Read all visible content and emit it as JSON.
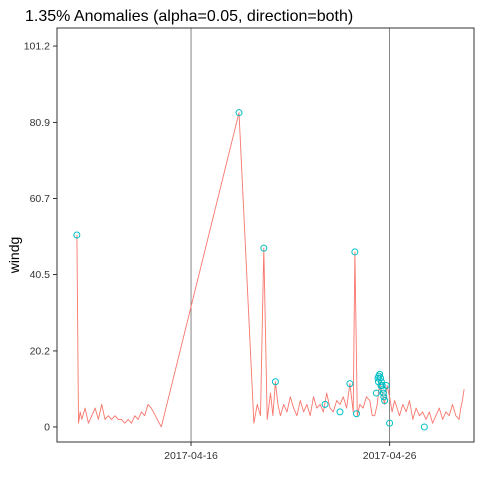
{
  "chart_data": {
    "type": "line",
    "title": "1.35% Anomalies (alpha=0.05, direction=both)",
    "xlabel": "",
    "ylabel": "windg",
    "x_axis_type": "date",
    "xlim": [
      "2017-04-09T06:00",
      "2017-04-30T06:00"
    ],
    "ylim": [
      -4,
      106
    ],
    "grid": "vertical lines at x ticks",
    "legend": "none",
    "x_ticks": [
      {
        "label": "2017-04-16",
        "value": "2017-04-16T00:00"
      },
      {
        "label": "2017-04-26",
        "value": "2017-04-26T00:00"
      }
    ],
    "y_ticks": [
      {
        "label": "0",
        "value": 0
      },
      {
        "label": "20.2",
        "value": 20.2
      },
      {
        "label": "40.5",
        "value": 40.5
      },
      {
        "label": "60.7",
        "value": 60.7
      },
      {
        "label": "80.9",
        "value": 80.9
      },
      {
        "label": "101.2",
        "value": 101.2
      }
    ],
    "colors": {
      "line": "#f8766d",
      "anomaly": "#00bfc4",
      "panel_border": "#333333",
      "vline": "#666666"
    },
    "series": [
      {
        "kind": "line",
        "x": [
          "2017-04-10T06:00",
          "2017-04-10T08:00",
          "2017-04-10T10:00",
          "2017-04-10T12:00",
          "2017-04-10T16:00",
          "2017-04-10T20:00",
          "2017-04-11T00:00",
          "2017-04-11T04:00",
          "2017-04-11T08:00",
          "2017-04-11T12:00",
          "2017-04-11T16:00",
          "2017-04-11T20:00",
          "2017-04-12T00:00",
          "2017-04-12T04:00",
          "2017-04-12T08:00",
          "2017-04-12T12:00",
          "2017-04-12T16:00",
          "2017-04-12T20:00",
          "2017-04-13T00:00",
          "2017-04-13T04:00",
          "2017-04-13T08:00",
          "2017-04-13T12:00",
          "2017-04-13T16:00",
          "2017-04-13T20:00",
          "2017-04-14T00:00",
          "2017-04-14T12:00",
          "2017-04-18T10:00",
          "2017-04-19T04:00",
          "2017-04-19T08:00",
          "2017-04-19T12:00",
          "2017-04-19T16:00",
          "2017-04-19T20:00",
          "2017-04-20T00:00",
          "2017-04-20T03:00",
          "2017-04-20T06:00",
          "2017-04-20T09:00",
          "2017-04-20T12:00",
          "2017-04-20T16:00",
          "2017-04-20T20:00",
          "2017-04-21T00:00",
          "2017-04-21T04:00",
          "2017-04-21T08:00",
          "2017-04-21T12:00",
          "2017-04-21T16:00",
          "2017-04-21T20:00",
          "2017-04-22T00:00",
          "2017-04-22T04:00",
          "2017-04-22T08:00",
          "2017-04-22T12:00",
          "2017-04-22T16:00",
          "2017-04-22T20:00",
          "2017-04-23T00:00",
          "2017-04-23T04:00",
          "2017-04-23T08:00",
          "2017-04-23T12:00",
          "2017-04-23T16:00",
          "2017-04-23T20:00",
          "2017-04-24T00:00",
          "2017-04-24T04:00",
          "2017-04-24T06:00",
          "2017-04-24T09:00",
          "2017-04-24T12:00",
          "2017-04-24T16:00",
          "2017-04-24T20:00",
          "2017-04-25T00:00",
          "2017-04-25T03:00",
          "2017-04-25T06:00",
          "2017-04-25T09:00",
          "2017-04-25T12:00",
          "2017-04-25T15:00",
          "2017-04-25T18:00",
          "2017-04-25T21:00",
          "2017-04-26T00:00",
          "2017-04-26T03:00",
          "2017-04-26T06:00",
          "2017-04-26T09:00",
          "2017-04-26T12:00",
          "2017-04-26T16:00",
          "2017-04-26T20:00",
          "2017-04-27T00:00",
          "2017-04-27T04:00",
          "2017-04-27T08:00",
          "2017-04-27T12:00",
          "2017-04-27T16:00",
          "2017-04-27T20:00",
          "2017-04-28T00:00",
          "2017-04-28T04:00",
          "2017-04-28T08:00",
          "2017-04-28T12:00",
          "2017-04-28T16:00",
          "2017-04-28T20:00",
          "2017-04-29T00:00",
          "2017-04-29T04:00",
          "2017-04-29T08:00",
          "2017-04-29T12:00",
          "2017-04-29T14:00",
          "2017-04-29T16:00",
          "2017-04-29T18:00"
        ],
        "y": [
          51,
          1,
          4,
          2,
          5,
          1,
          3,
          5,
          2,
          6,
          2,
          3,
          2,
          3,
          2,
          2,
          1,
          2,
          1,
          3,
          2,
          4,
          3,
          6,
          5,
          0,
          83.5,
          1,
          6,
          3,
          47.5,
          2,
          9,
          3,
          12,
          6,
          3,
          6,
          4,
          8,
          5,
          3,
          7,
          4,
          6,
          3,
          8,
          5,
          6,
          4,
          9,
          5,
          4,
          7,
          6,
          8,
          5,
          11.5,
          4,
          46.5,
          3,
          6,
          5,
          8,
          7,
          3,
          3,
          6,
          12,
          9,
          6,
          11,
          8,
          4,
          7,
          5,
          3,
          6,
          4,
          7,
          2,
          5,
          3,
          4,
          2,
          4,
          1,
          3,
          5,
          2,
          4,
          3,
          6,
          3,
          2,
          5,
          7,
          10
        ]
      },
      {
        "kind": "anomaly_points",
        "x": [
          "2017-04-10T06:00",
          "2017-04-18T10:00",
          "2017-04-19T16:00",
          "2017-04-20T06:00",
          "2017-04-22T18:00",
          "2017-04-23T12:00",
          "2017-04-24T00:00",
          "2017-04-24T06:00",
          "2017-04-24T08:00",
          "2017-04-25T08:00",
          "2017-04-25T10:00",
          "2017-04-25T11:00",
          "2017-04-25T12:00",
          "2017-04-25T13:00",
          "2017-04-25T14:00",
          "2017-04-25T15:00",
          "2017-04-25T16:00",
          "2017-04-25T17:00",
          "2017-04-25T18:00",
          "2017-04-25T10:30",
          "2017-04-25T13:30",
          "2017-04-25T16:30",
          "2017-04-25T20:00",
          "2017-04-26T00:00",
          "2017-04-27T18:00"
        ],
        "y": [
          51,
          83.5,
          47.5,
          12,
          6,
          4,
          11.5,
          46.5,
          3.5,
          9,
          13,
          13.5,
          14,
          13,
          12,
          11,
          10,
          8,
          7,
          12,
          11,
          9,
          11,
          1,
          0
        ]
      }
    ]
  }
}
